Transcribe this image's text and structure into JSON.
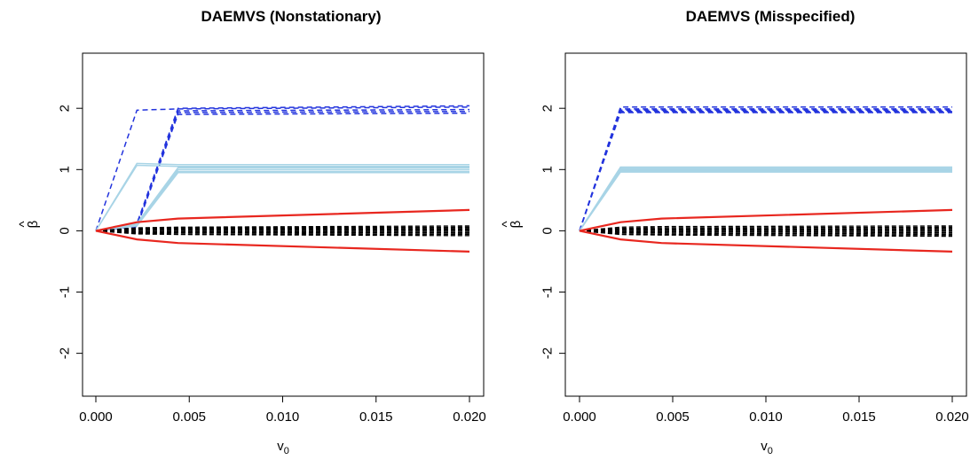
{
  "chart_data": [
    {
      "type": "line",
      "title": "DAEMVS (Nonstationary)",
      "xlabel": "v",
      "xlabel_sub": "0",
      "ylabel": "β",
      "ylabel_hat": "^",
      "xlim": [
        0.0,
        0.02
      ],
      "ylim": [
        -2.7,
        2.9
      ],
      "xticks": [
        0.0,
        0.005,
        0.01,
        0.015,
        0.02
      ],
      "xtick_labels": [
        "0.000",
        "0.005",
        "0.010",
        "0.015",
        "0.020"
      ],
      "yticks": [
        -2,
        -1,
        0,
        1,
        2
      ],
      "ytick_labels": [
        "-2",
        "-1",
        "0",
        "1",
        "2"
      ],
      "x": [
        0.0,
        0.0022,
        0.0044,
        0.02
      ],
      "series": [
        {
          "group": "strong",
          "color": "#2233dd",
          "dash": true,
          "values": [
            0,
            1.97,
            1.99,
            2.02
          ]
        },
        {
          "group": "strong",
          "color": "#2233dd",
          "dash": true,
          "values": [
            0,
            0.12,
            2.0,
            2.04
          ]
        },
        {
          "group": "strong",
          "color": "#2233dd",
          "dash": true,
          "values": [
            0,
            0.1,
            1.96,
            1.98
          ]
        },
        {
          "group": "strong",
          "color": "#2233dd",
          "dash": true,
          "values": [
            0,
            0.08,
            1.93,
            1.95
          ]
        },
        {
          "group": "strong",
          "color": "#2233dd",
          "dash": true,
          "values": [
            0,
            0.07,
            1.9,
            1.92
          ]
        },
        {
          "group": "moderate",
          "color": "#a8d4e6",
          "dash": false,
          "values": [
            0,
            1.1,
            1.08,
            1.08
          ]
        },
        {
          "group": "moderate",
          "color": "#a8d4e6",
          "dash": false,
          "values": [
            0,
            1.07,
            1.05,
            1.05
          ]
        },
        {
          "group": "moderate",
          "color": "#a8d4e6",
          "dash": false,
          "values": [
            0,
            0.12,
            1.03,
            1.03
          ]
        },
        {
          "group": "moderate",
          "color": "#a8d4e6",
          "dash": false,
          "values": [
            0,
            0.1,
            1.0,
            1.0
          ]
        },
        {
          "group": "moderate",
          "color": "#a8d4e6",
          "dash": false,
          "values": [
            0,
            0.09,
            0.97,
            0.97
          ]
        },
        {
          "group": "moderate",
          "color": "#a8d4e6",
          "dash": false,
          "values": [
            0,
            0.08,
            0.95,
            0.95
          ]
        },
        {
          "group": "bound",
          "color": "#e8271f",
          "dash": false,
          "values": [
            0,
            0.14,
            0.2,
            0.34
          ]
        },
        {
          "group": "bound",
          "color": "#e8271f",
          "dash": false,
          "values": [
            0,
            -0.14,
            -0.2,
            -0.34
          ]
        },
        {
          "group": "null",
          "color": "#000000",
          "dash": true,
          "values": [
            0,
            0.05,
            0.06,
            0.08
          ]
        },
        {
          "group": "null",
          "color": "#000000",
          "dash": true,
          "values": [
            0,
            0.04,
            0.05,
            0.06
          ]
        },
        {
          "group": "null",
          "color": "#000000",
          "dash": true,
          "values": [
            0,
            0.03,
            0.04,
            0.05
          ]
        },
        {
          "group": "null",
          "color": "#000000",
          "dash": true,
          "values": [
            0,
            0.02,
            0.03,
            0.03
          ]
        },
        {
          "group": "null",
          "color": "#000000",
          "dash": true,
          "values": [
            0,
            0.01,
            0.01,
            0.01
          ]
        },
        {
          "group": "null",
          "color": "#000000",
          "dash": true,
          "values": [
            0,
            -0.01,
            -0.01,
            -0.01
          ]
        },
        {
          "group": "null",
          "color": "#000000",
          "dash": true,
          "values": [
            0,
            -0.02,
            -0.02,
            -0.03
          ]
        },
        {
          "group": "null",
          "color": "#000000",
          "dash": true,
          "values": [
            0,
            -0.03,
            -0.03,
            -0.04
          ]
        },
        {
          "group": "null",
          "color": "#000000",
          "dash": true,
          "values": [
            0,
            -0.04,
            -0.05,
            -0.06
          ]
        },
        {
          "group": "null",
          "color": "#000000",
          "dash": true,
          "values": [
            0,
            -0.05,
            -0.06,
            -0.08
          ]
        }
      ]
    },
    {
      "type": "line",
      "title": "DAEMVS (Misspecified)",
      "xlabel": "v",
      "xlabel_sub": "0",
      "ylabel": "β",
      "ylabel_hat": "^",
      "xlim": [
        0.0,
        0.02
      ],
      "ylim": [
        -2.7,
        2.9
      ],
      "xticks": [
        0.0,
        0.005,
        0.01,
        0.015,
        0.02
      ],
      "xtick_labels": [
        "0.000",
        "0.005",
        "0.010",
        "0.015",
        "0.020"
      ],
      "yticks": [
        -2,
        -1,
        0,
        1,
        2
      ],
      "ytick_labels": [
        "-2",
        "-1",
        "0",
        "1",
        "2"
      ],
      "x": [
        0.0,
        0.0022,
        0.0044,
        0.02
      ],
      "series": [
        {
          "group": "strong",
          "color": "#2233dd",
          "dash": true,
          "values": [
            0,
            2.02,
            2.02,
            2.02
          ]
        },
        {
          "group": "strong",
          "color": "#2233dd",
          "dash": true,
          "values": [
            0,
            1.99,
            1.99,
            1.99
          ]
        },
        {
          "group": "strong",
          "color": "#2233dd",
          "dash": true,
          "values": [
            0,
            1.97,
            1.97,
            1.97
          ]
        },
        {
          "group": "strong",
          "color": "#2233dd",
          "dash": true,
          "values": [
            0,
            1.95,
            1.95,
            1.95
          ]
        },
        {
          "group": "strong",
          "color": "#2233dd",
          "dash": true,
          "values": [
            0,
            1.93,
            1.93,
            1.93
          ]
        },
        {
          "group": "moderate",
          "color": "#a8d4e6",
          "dash": false,
          "values": [
            0,
            1.04,
            1.04,
            1.04
          ]
        },
        {
          "group": "moderate",
          "color": "#a8d4e6",
          "dash": false,
          "values": [
            0,
            1.02,
            1.02,
            1.02
          ]
        },
        {
          "group": "moderate",
          "color": "#a8d4e6",
          "dash": false,
          "values": [
            0,
            1.0,
            1.0,
            1.0
          ]
        },
        {
          "group": "moderate",
          "color": "#a8d4e6",
          "dash": false,
          "values": [
            0,
            0.98,
            0.98,
            0.98
          ]
        },
        {
          "group": "moderate",
          "color": "#a8d4e6",
          "dash": false,
          "values": [
            0,
            0.96,
            0.96,
            0.96
          ]
        },
        {
          "group": "bound",
          "color": "#e8271f",
          "dash": false,
          "values": [
            0,
            0.14,
            0.2,
            0.34
          ]
        },
        {
          "group": "bound",
          "color": "#e8271f",
          "dash": false,
          "values": [
            0,
            -0.14,
            -0.2,
            -0.34
          ]
        },
        {
          "group": "null",
          "color": "#000000",
          "dash": true,
          "values": [
            0,
            0.06,
            0.07,
            0.08
          ]
        },
        {
          "group": "null",
          "color": "#000000",
          "dash": true,
          "values": [
            0,
            0.04,
            0.05,
            0.06
          ]
        },
        {
          "group": "null",
          "color": "#000000",
          "dash": true,
          "values": [
            0,
            0.03,
            0.03,
            0.04
          ]
        },
        {
          "group": "null",
          "color": "#000000",
          "dash": true,
          "values": [
            0,
            0.02,
            0.02,
            0.02
          ]
        },
        {
          "group": "null",
          "color": "#000000",
          "dash": true,
          "values": [
            0,
            0.01,
            0.01,
            0.01
          ]
        },
        {
          "group": "null",
          "color": "#000000",
          "dash": true,
          "values": [
            0,
            -0.01,
            -0.01,
            -0.01
          ]
        },
        {
          "group": "null",
          "color": "#000000",
          "dash": true,
          "values": [
            0,
            -0.02,
            -0.02,
            -0.03
          ]
        },
        {
          "group": "null",
          "color": "#000000",
          "dash": true,
          "values": [
            0,
            -0.03,
            -0.04,
            -0.05
          ]
        },
        {
          "group": "null",
          "color": "#000000",
          "dash": true,
          "values": [
            0,
            -0.05,
            -0.06,
            -0.07
          ]
        },
        {
          "group": "null",
          "color": "#000000",
          "dash": true,
          "values": [
            0,
            -0.06,
            -0.07,
            -0.09
          ]
        }
      ]
    }
  ]
}
